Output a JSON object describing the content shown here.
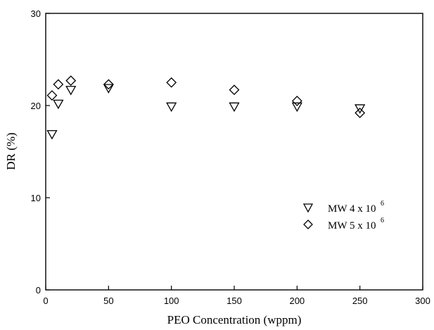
{
  "chart_data": {
    "type": "scatter",
    "xlabel": "PEO Concentration (wppm)",
    "ylabel": "DR (%)",
    "xlim": [
      0,
      300
    ],
    "ylim": [
      0,
      30
    ],
    "xticks": [
      "0",
      "50",
      "100",
      "150",
      "200",
      "250",
      "300"
    ],
    "yticks": [
      "0",
      "10",
      "20",
      "30"
    ],
    "grid": false,
    "legend_position": "lower-right",
    "series": [
      {
        "name": "MW 4 x 10",
        "name_superscript": "6",
        "marker": "triangle-down",
        "x": [
          5,
          10,
          20,
          50,
          100,
          150,
          200,
          250
        ],
        "y": [
          16.9,
          20.2,
          21.7,
          21.9,
          19.9,
          19.9,
          19.9,
          19.7
        ]
      },
      {
        "name": "MW 5 x 10",
        "name_superscript": "6",
        "marker": "diamond",
        "x": [
          5,
          10,
          20,
          50,
          100,
          150,
          200,
          250
        ],
        "y": [
          21.1,
          22.3,
          22.7,
          22.3,
          22.5,
          21.7,
          20.5,
          19.2
        ]
      }
    ]
  }
}
